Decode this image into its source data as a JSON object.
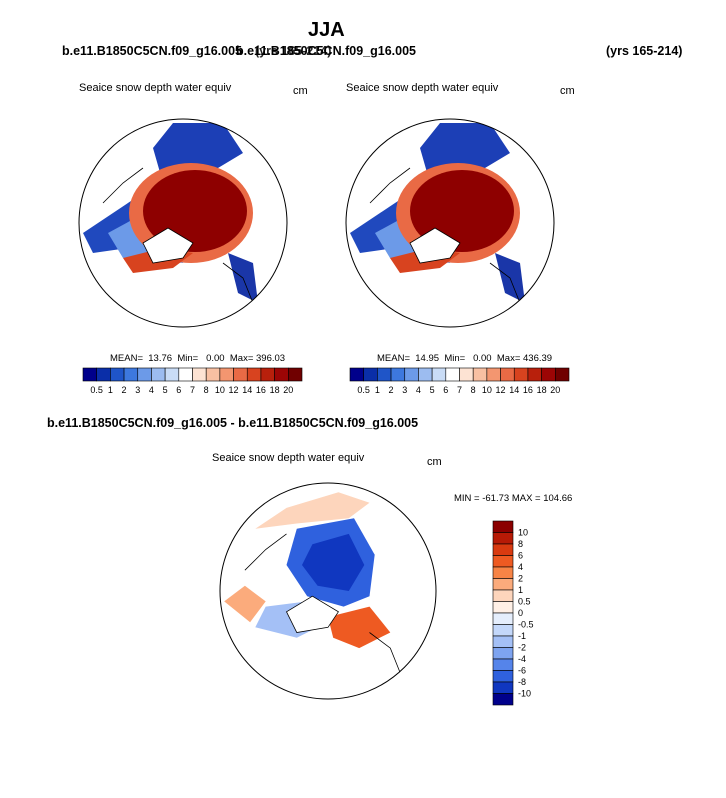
{
  "figure": {
    "title": "JJA",
    "case_left": "b.e11.B1850C5CN.f09_g16.005",
    "case_right_overlap": "b.e11.B1850C5CN.f09_g16.005",
    "yrs_overlap": "(yrs 165-214)",
    "case_right": "b.e11.B1850C5CN.f09_g16.005",
    "yrs_right": "(yrs 165-214)",
    "diff_title": "b.e11.B1850C5CN.f09_g16.005 - b.e11.B1850C5CN.f09_g16.005"
  },
  "chart_data": [
    {
      "type": "heatmap",
      "projection": "polar-stereographic (Arctic)",
      "variable": "Seaice snow depth water equiv",
      "units": "cm",
      "stats": "MEAN=  13.76  Min=   0.00  Max= 396.03",
      "mean": 13.76,
      "min": 0.0,
      "max": 396.03,
      "colorbar": {
        "orientation": "horizontal",
        "levels": [
          "0.5",
          "1",
          "2",
          "3",
          "4",
          "5",
          "6",
          "7",
          "8",
          "10",
          "12",
          "14",
          "16",
          "18",
          "20"
        ],
        "colors": [
          "#00008b",
          "#0a2ea8",
          "#1f55c8",
          "#3d78de",
          "#6c9ae8",
          "#9cbcf0",
          "#c9dcf6",
          "#ffffff",
          "#fde3d3",
          "#f8c0a2",
          "#f39670",
          "#e96a45",
          "#d8431f",
          "#b8200c",
          "#9c0505",
          "#700000"
        ]
      }
    },
    {
      "type": "heatmap",
      "projection": "polar-stereographic (Arctic)",
      "variable": "Seaice snow depth water equiv",
      "units": "cm",
      "stats": "MEAN=  14.95  Min=   0.00  Max= 436.39",
      "mean": 14.95,
      "min": 0.0,
      "max": 436.39,
      "colorbar": {
        "orientation": "horizontal",
        "levels": [
          "0.5",
          "1",
          "2",
          "3",
          "4",
          "5",
          "6",
          "7",
          "8",
          "10",
          "12",
          "14",
          "16",
          "18",
          "20"
        ],
        "colors": [
          "#00008b",
          "#0a2ea8",
          "#1f55c8",
          "#3d78de",
          "#6c9ae8",
          "#9cbcf0",
          "#c9dcf6",
          "#ffffff",
          "#fde3d3",
          "#f8c0a2",
          "#f39670",
          "#e96a45",
          "#d8431f",
          "#b8200c",
          "#9c0505",
          "#700000"
        ]
      }
    },
    {
      "type": "heatmap",
      "projection": "polar-stereographic (Arctic)",
      "variable": "Seaice snow depth water equiv",
      "units": "cm",
      "stats": "MIN = -61.73 MAX = 104.66",
      "min": -61.73,
      "max": 104.66,
      "colorbar": {
        "orientation": "vertical",
        "levels": [
          "10",
          "8",
          "6",
          "4",
          "2",
          "1",
          "0.5",
          "0",
          "-0.5",
          "-1",
          "-2",
          "-4",
          "-6",
          "-8",
          "-10"
        ],
        "colors": [
          "#8b0000",
          "#b71a06",
          "#d93a10",
          "#ee5a22",
          "#f78446",
          "#fbab7c",
          "#fdd5bc",
          "#fff0e6",
          "#e5eefc",
          "#c4d8fa",
          "#a4c0f6",
          "#7ea4f0",
          "#5584ea",
          "#2f61de",
          "#1037c0",
          "#00008b"
        ]
      }
    }
  ]
}
